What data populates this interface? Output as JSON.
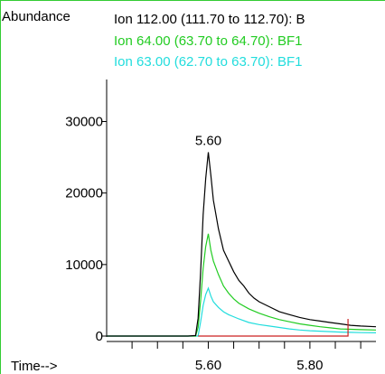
{
  "chart_data": {
    "type": "line",
    "ylabel": "Abundance",
    "xlabel": "Time-->",
    "xlim": [
      5.4,
      5.93
    ],
    "ylim": [
      0,
      36000
    ],
    "x_ticks": [
      "5.60",
      "5.80"
    ],
    "y_ticks": [
      "0",
      "10000",
      "20000",
      "30000"
    ],
    "peak_label": "5.60",
    "peak_x": 5.6,
    "peak_y": 25700,
    "series": [
      {
        "name": "Ion 112.00 (111.70 to 112.70): B",
        "color": "#000000",
        "points": [
          [
            5.4,
            0
          ],
          [
            5.56,
            0
          ],
          [
            5.575,
            80
          ],
          [
            5.58,
            2500
          ],
          [
            5.585,
            9000
          ],
          [
            5.59,
            17000
          ],
          [
            5.595,
            22000
          ],
          [
            5.6,
            25700
          ],
          [
            5.605,
            22500
          ],
          [
            5.61,
            19000
          ],
          [
            5.615,
            17000
          ],
          [
            5.62,
            15000
          ],
          [
            5.63,
            12000
          ],
          [
            5.64,
            10500
          ],
          [
            5.65,
            9000
          ],
          [
            5.66,
            7800
          ],
          [
            5.67,
            7000
          ],
          [
            5.68,
            6000
          ],
          [
            5.69,
            5300
          ],
          [
            5.7,
            4800
          ],
          [
            5.72,
            4100
          ],
          [
            5.74,
            3400
          ],
          [
            5.76,
            3000
          ],
          [
            5.78,
            2600
          ],
          [
            5.8,
            2300
          ],
          [
            5.82,
            2100
          ],
          [
            5.84,
            1900
          ],
          [
            5.86,
            1700
          ],
          [
            5.88,
            1500
          ],
          [
            5.9,
            1400
          ],
          [
            5.93,
            1300
          ]
        ]
      },
      {
        "name": "Ion  64.00 (63.70 to 64.70): BF1",
        "color": "#22cc22",
        "points": [
          [
            5.4,
            0
          ],
          [
            5.575,
            0
          ],
          [
            5.58,
            1200
          ],
          [
            5.585,
            5000
          ],
          [
            5.59,
            9500
          ],
          [
            5.595,
            12500
          ],
          [
            5.6,
            14300
          ],
          [
            5.605,
            12000
          ],
          [
            5.61,
            10500
          ],
          [
            5.62,
            8600
          ],
          [
            5.63,
            7000
          ],
          [
            5.64,
            6000
          ],
          [
            5.65,
            5200
          ],
          [
            5.66,
            4600
          ],
          [
            5.68,
            3800
          ],
          [
            5.7,
            3200
          ],
          [
            5.72,
            2700
          ],
          [
            5.74,
            2300
          ],
          [
            5.76,
            2000
          ],
          [
            5.78,
            1700
          ],
          [
            5.8,
            1500
          ],
          [
            5.82,
            1300
          ],
          [
            5.84,
            1150
          ],
          [
            5.86,
            1000
          ],
          [
            5.88,
            950
          ],
          [
            5.9,
            900
          ],
          [
            5.93,
            850
          ]
        ]
      },
      {
        "name": "Ion  63.00 (62.70 to 63.70): BF1",
        "color": "#22dddd",
        "points": [
          [
            5.4,
            0
          ],
          [
            5.58,
            0
          ],
          [
            5.585,
            2000
          ],
          [
            5.59,
            4300
          ],
          [
            5.595,
            5800
          ],
          [
            5.6,
            6700
          ],
          [
            5.605,
            5600
          ],
          [
            5.61,
            4800
          ],
          [
            5.62,
            4000
          ],
          [
            5.63,
            3400
          ],
          [
            5.64,
            3000
          ],
          [
            5.66,
            2400
          ],
          [
            5.68,
            1900
          ],
          [
            5.7,
            1600
          ],
          [
            5.72,
            1400
          ],
          [
            5.74,
            1200
          ],
          [
            5.76,
            1000
          ],
          [
            5.78,
            850
          ],
          [
            5.8,
            750
          ],
          [
            5.82,
            680
          ],
          [
            5.84,
            620
          ],
          [
            5.86,
            560
          ],
          [
            5.88,
            520
          ],
          [
            5.9,
            480
          ],
          [
            5.93,
            450
          ]
        ]
      }
    ],
    "baseline": {
      "color": "#cc2222",
      "x_start": 5.58,
      "x_end": 5.875,
      "marker_y": 2400
    },
    "colors": {
      "frame": "#33cc33",
      "axis": "#000000"
    }
  }
}
